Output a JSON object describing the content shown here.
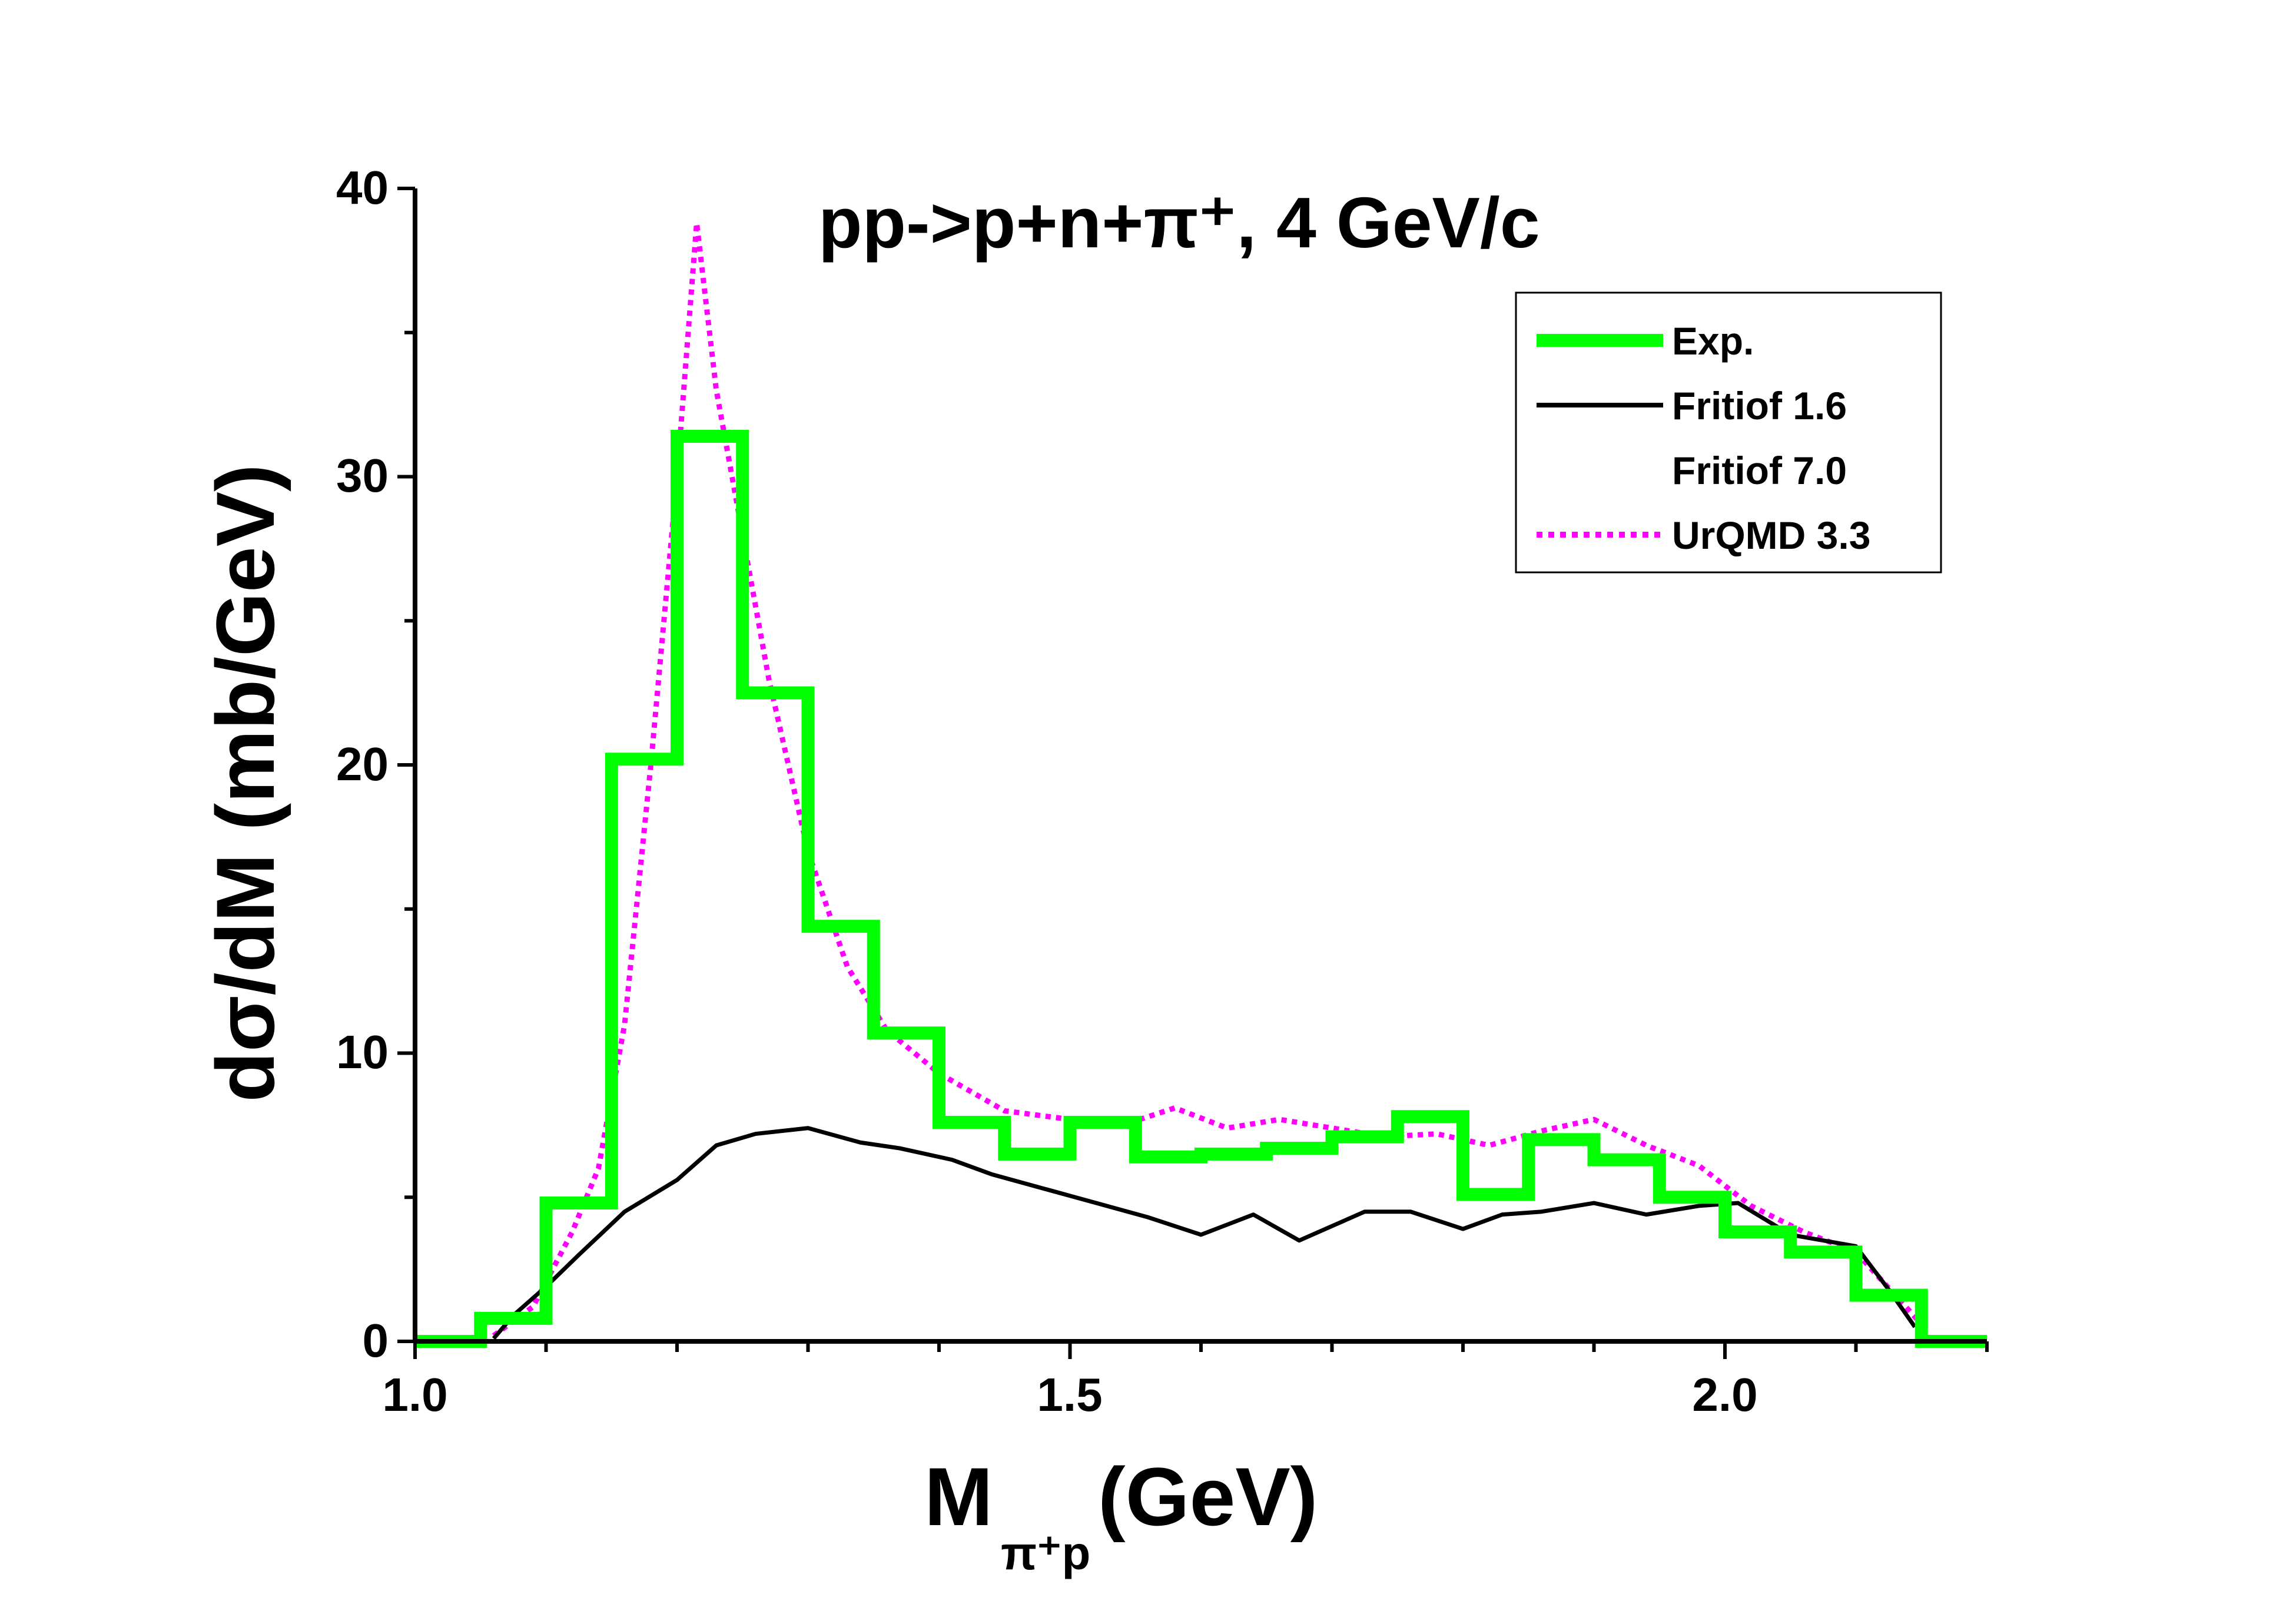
{
  "chart_data": {
    "type": "line",
    "title": "pp->p+n+π⁺, 4 GeV/c",
    "xlabel": "M",
    "xlabel_sub": "π⁺p",
    "xlabel_unit": "(GeV)",
    "ylabel": "dσ/dM (mb/GeV)",
    "xlim": [
      1.0,
      2.2
    ],
    "ylim": [
      0,
      40
    ],
    "x_ticks": [
      1.0,
      1.5,
      2.0
    ],
    "x_tick_labels": [
      "1.0",
      "1.5",
      "2.0"
    ],
    "y_ticks": [
      0,
      10,
      20,
      30,
      40
    ],
    "y_tick_labels": [
      "0",
      "10",
      "20",
      "30",
      "40"
    ],
    "legend_position": "top-right",
    "series": [
      {
        "name": "Exp.",
        "style": "step",
        "color": "#00ff00",
        "bin_edges": [
          1.0,
          1.05,
          1.1,
          1.15,
          1.2,
          1.25,
          1.3,
          1.35,
          1.4,
          1.45,
          1.5,
          1.55,
          1.6,
          1.65,
          1.7,
          1.75,
          1.8,
          1.85,
          1.9,
          1.95,
          2.0,
          2.05,
          2.1,
          2.15,
          2.2
        ],
        "values": [
          0.0,
          0.8,
          4.8,
          20.2,
          31.4,
          22.5,
          14.4,
          10.7,
          7.6,
          6.5,
          7.6,
          6.4,
          6.5,
          6.7,
          7.1,
          7.8,
          5.1,
          7.0,
          6.3,
          5.0,
          3.8,
          3.1,
          1.6,
          0.0
        ]
      },
      {
        "name": "Fritiof 1.6",
        "style": "solid",
        "color": "#000000",
        "x": [
          1.06,
          1.075,
          1.1,
          1.125,
          1.16,
          1.2,
          1.23,
          1.26,
          1.3,
          1.34,
          1.37,
          1.41,
          1.44,
          1.48,
          1.52,
          1.56,
          1.6,
          1.64,
          1.675,
          1.7,
          1.725,
          1.76,
          1.8,
          1.83,
          1.86,
          1.9,
          1.94,
          1.98,
          2.01,
          2.05,
          2.1,
          2.125,
          2.145
        ],
        "values": [
          0.1,
          0.9,
          1.9,
          3.0,
          4.5,
          5.6,
          6.8,
          7.2,
          7.4,
          6.9,
          6.7,
          6.3,
          5.8,
          5.3,
          4.8,
          4.3,
          3.7,
          4.4,
          3.5,
          4.0,
          4.5,
          4.5,
          3.9,
          4.4,
          4.5,
          4.8,
          4.4,
          4.7,
          4.8,
          3.7,
          3.3,
          1.8,
          0.5
        ]
      },
      {
        "name": "Fritiof 7.0",
        "style": "solid",
        "color": "#ffffff",
        "x": [],
        "values": []
      },
      {
        "name": "UrQMD 3.3",
        "style": "dotted",
        "color": "#ff00ff",
        "x": [
          1.06,
          1.09,
          1.12,
          1.14,
          1.16,
          1.18,
          1.2,
          1.215,
          1.23,
          1.25,
          1.27,
          1.3,
          1.33,
          1.36,
          1.4,
          1.45,
          1.5,
          1.54,
          1.58,
          1.62,
          1.66,
          1.7,
          1.74,
          1.78,
          1.82,
          1.86,
          1.9,
          1.94,
          1.98,
          2.02,
          2.06,
          2.1,
          2.13,
          2.15
        ],
        "values": [
          0.2,
          1.2,
          3.8,
          6.0,
          11.0,
          20.0,
          30.0,
          38.8,
          33.0,
          28.0,
          23.0,
          17.0,
          13.0,
          10.8,
          9.3,
          8.0,
          7.7,
          7.5,
          8.1,
          7.4,
          7.7,
          7.4,
          7.1,
          7.2,
          6.8,
          7.3,
          7.7,
          6.8,
          6.1,
          4.7,
          3.8,
          3.1,
          1.6,
          0.6
        ]
      }
    ]
  }
}
